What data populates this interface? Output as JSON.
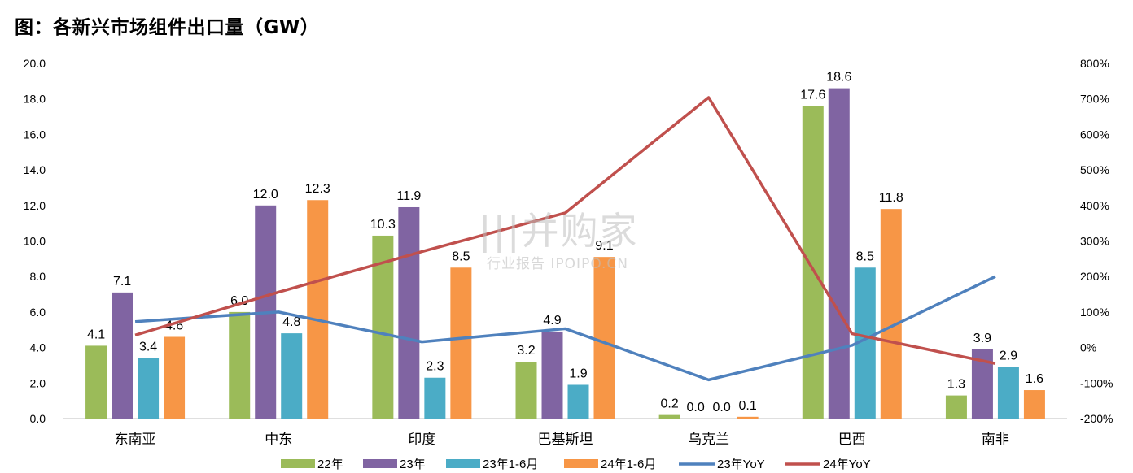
{
  "title": "图：各新兴市场组件出口量（GW）",
  "watermark": {
    "brand": "|||并购家",
    "subtitle": "行业报告 IPOIPO.CN"
  },
  "chart_data": {
    "type": "bar",
    "title": "图：各新兴市场组件出口量（GW）",
    "categories": [
      "东南亚",
      "中东",
      "印度",
      "巴基斯坦",
      "乌克兰",
      "巴西",
      "南非"
    ],
    "y_left": {
      "ylim": [
        0,
        20
      ],
      "ticks": [
        "0.0",
        "2.0",
        "4.0",
        "6.0",
        "8.0",
        "10.0",
        "12.0",
        "14.0",
        "16.0",
        "18.0",
        "20.0"
      ]
    },
    "y_right": {
      "ylim": [
        -200,
        800
      ],
      "ticks": [
        "-200%",
        "-100%",
        "0%",
        "100%",
        "200%",
        "300%",
        "400%",
        "500%",
        "600%",
        "700%",
        "800%"
      ]
    },
    "series": [
      {
        "name": "22年",
        "type": "bar",
        "color": "#9BBB59",
        "values": [
          4.1,
          6.0,
          10.3,
          3.2,
          0.2,
          17.6,
          1.3
        ],
        "labels": [
          "4.1",
          "6.0",
          "10.3",
          "3.2",
          "0.2",
          "17.6",
          "1.3"
        ]
      },
      {
        "name": "23年",
        "type": "bar",
        "color": "#8064A2",
        "values": [
          7.1,
          12.0,
          11.9,
          4.9,
          0.0,
          18.6,
          3.9
        ],
        "labels": [
          "7.1",
          "12.0",
          "11.9",
          "4.9",
          "0.0",
          "18.6",
          "3.9"
        ]
      },
      {
        "name": "23年1-6月",
        "type": "bar",
        "color": "#4BACC6",
        "values": [
          3.4,
          4.8,
          2.3,
          1.9,
          0.0,
          8.5,
          2.9
        ],
        "labels": [
          "3.4",
          "4.8",
          "2.3",
          "1.9",
          "0.0",
          "8.5",
          "2.9"
        ]
      },
      {
        "name": "24年1-6月",
        "type": "bar",
        "color": "#F79646",
        "values": [
          4.6,
          12.3,
          8.5,
          9.1,
          0.1,
          11.8,
          1.6
        ],
        "labels": [
          "4.6",
          "12.3",
          "8.5",
          "9.1",
          "0.1",
          "11.8",
          "1.6"
        ]
      },
      {
        "name": "23年YoY",
        "type": "line",
        "axis": "right",
        "color": "#4F81BD",
        "values": [
          73,
          100,
          16,
          53,
          -91,
          6,
          200
        ]
      },
      {
        "name": "24年YoY",
        "type": "line",
        "axis": "right",
        "color": "#C0504D",
        "values": [
          35,
          156,
          270,
          379,
          704,
          39,
          -45
        ]
      }
    ],
    "legend": "bottom",
    "grid": false
  }
}
